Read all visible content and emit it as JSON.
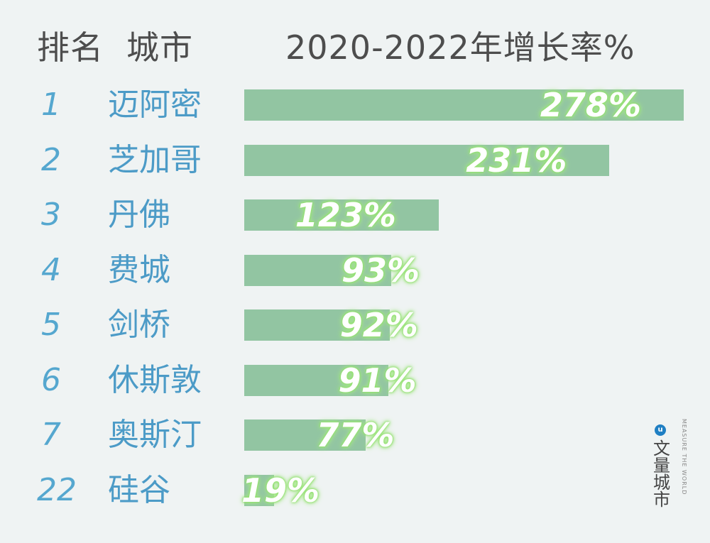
{
  "header": {
    "rank_label": "排名",
    "city_label": "城市",
    "metric_label": "2020-2022年增长率%"
  },
  "chart_data": {
    "type": "bar",
    "orientation": "horizontal",
    "title": "",
    "xlabel": "2020-2022年增长率%",
    "ylabel": "",
    "xlim": [
      0,
      278
    ],
    "grid": false,
    "legend": "none",
    "colors": {
      "bar": "#92c5a2",
      "rank_text": "#55a7cf",
      "city_text": "#4c9bc7",
      "value_text": "#ffffff",
      "value_glow": "#8fe06a"
    },
    "rows": [
      {
        "rank": "1",
        "city": "迈阿密",
        "value": 278,
        "label": "278%"
      },
      {
        "rank": "2",
        "city": "芝加哥",
        "value": 231,
        "label": "231%"
      },
      {
        "rank": "3",
        "city": "丹佛",
        "value": 123,
        "label": "123%"
      },
      {
        "rank": "4",
        "city": "费城",
        "value": 93,
        "label": "93%"
      },
      {
        "rank": "5",
        "city": "剑桥",
        "value": 92,
        "label": "92%"
      },
      {
        "rank": "6",
        "city": "休斯敦",
        "value": 91,
        "label": "91%"
      },
      {
        "rank": "7",
        "city": "奥斯汀",
        "value": 77,
        "label": "77%"
      },
      {
        "rank": "22",
        "city": "硅谷",
        "value": 19,
        "label": "19%"
      }
    ]
  },
  "brand": {
    "icon": "u-logo-icon",
    "icon_glyph": "u",
    "name_cn": "文量城市",
    "tagline": "MEASURE THE WORLD"
  }
}
